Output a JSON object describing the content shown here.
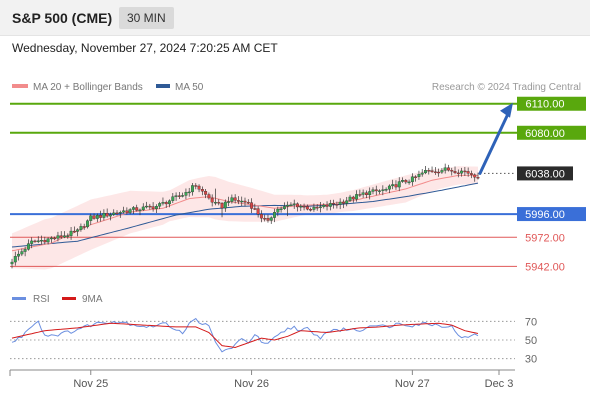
{
  "header": {
    "title": "S&P 500 (CME)",
    "timeframe": "30 MIN",
    "datetime": "Wednesday, November 27, 2024 7:20:25 AM CET"
  },
  "colors": {
    "ma20": "#f28c8c",
    "bollinger_fill": "#fde4e4",
    "ma50": "#2f5a96",
    "green_level": "#59a80d",
    "blue_level": "#3a6fd8",
    "red_level": "#e05858",
    "forecast_arrow": "#2e62b8",
    "current_price_bg": "#2b2b2b",
    "rsi": "#6b8fe0",
    "rsi_9ma": "#d41a1a"
  },
  "chart_data": [
    {
      "type": "candlestick",
      "legend": [
        {
          "name": "MA 20 + Bollinger Bands",
          "color": "#f28c8c"
        },
        {
          "name": "MA 50",
          "color": "#2f5a96"
        }
      ],
      "credit": "Research © 2024 Trading Central",
      "levels": [
        {
          "value": 6110.0,
          "label": "6110.00",
          "kind": "resistance",
          "color": "#59a80d"
        },
        {
          "value": 6080.0,
          "label": "6080.00",
          "kind": "resistance",
          "color": "#59a80d"
        },
        {
          "value": 6038.0,
          "label": "6038.00",
          "kind": "current",
          "color": "#2b2b2b"
        },
        {
          "value": 5996.0,
          "label": "5996.00",
          "kind": "pivot",
          "color": "#3a6fd8"
        },
        {
          "value": 5972.0,
          "label": "5972.00",
          "kind": "support",
          "color": "#e05858"
        },
        {
          "value": 5942.0,
          "label": "5942.00",
          "kind": "support",
          "color": "#e05858"
        }
      ],
      "forecast": {
        "from": 6038,
        "to": 6110
      },
      "ylim": [
        5932,
        6118
      ],
      "close_anchors": [
        [
          0,
          5948
        ],
        [
          6,
          5967
        ],
        [
          14,
          5972
        ],
        [
          20,
          5978
        ],
        [
          24,
          5992
        ],
        [
          34,
          5999
        ],
        [
          44,
          6004
        ],
        [
          52,
          6016
        ],
        [
          56,
          6026
        ],
        [
          58,
          6019
        ],
        [
          62,
          6006
        ],
        [
          64,
          6004
        ],
        [
          66,
          6011
        ],
        [
          72,
          6008
        ],
        [
          76,
          5993
        ],
        [
          78,
          5987
        ],
        [
          80,
          6000
        ],
        [
          86,
          6006
        ],
        [
          92,
          6001
        ],
        [
          100,
          6008
        ],
        [
          108,
          6018
        ],
        [
          114,
          6021
        ],
        [
          118,
          6028
        ],
        [
          122,
          6032
        ],
        [
          126,
          6040
        ],
        [
          132,
          6042
        ],
        [
          138,
          6040
        ],
        [
          142,
          6035
        ]
      ],
      "ma20_anchors": [
        [
          0,
          5958
        ],
        [
          12,
          5966
        ],
        [
          24,
          5985
        ],
        [
          36,
          5998
        ],
        [
          46,
          6002
        ],
        [
          54,
          6012
        ],
        [
          60,
          6014
        ],
        [
          66,
          6009
        ],
        [
          74,
          6005
        ],
        [
          80,
          6002
        ],
        [
          88,
          6005
        ],
        [
          96,
          6006
        ],
        [
          104,
          6010
        ],
        [
          112,
          6016
        ],
        [
          120,
          6022
        ],
        [
          128,
          6031
        ],
        [
          136,
          6036
        ],
        [
          142,
          6036
        ]
      ],
      "ma50_anchors": [
        [
          0,
          5962
        ],
        [
          20,
          5968
        ],
        [
          36,
          5982
        ],
        [
          50,
          5995
        ],
        [
          60,
          6001
        ],
        [
          70,
          6004
        ],
        [
          80,
          6005
        ],
        [
          90,
          6004
        ],
        [
          100,
          6006
        ],
        [
          110,
          6009
        ],
        [
          120,
          6014
        ],
        [
          130,
          6020
        ],
        [
          142,
          6028
        ]
      ],
      "bb_width_anchors": [
        [
          0,
          18
        ],
        [
          10,
          26
        ],
        [
          24,
          26
        ],
        [
          36,
          22
        ],
        [
          48,
          16
        ],
        [
          56,
          20
        ],
        [
          62,
          22
        ],
        [
          72,
          18
        ],
        [
          80,
          14
        ],
        [
          90,
          10
        ],
        [
          100,
          10
        ],
        [
          110,
          12
        ],
        [
          120,
          14
        ],
        [
          132,
          10
        ],
        [
          142,
          9
        ]
      ],
      "x_ticks": [
        {
          "label": "Nov 25",
          "bar": 24
        },
        {
          "label": "Nov 26",
          "bar": 73
        },
        {
          "label": "Nov 27",
          "bar": 122
        },
        {
          "label": "Dec 3",
          "bar": 142
        }
      ]
    },
    {
      "type": "line",
      "legend": [
        {
          "name": "RSI",
          "color": "#6b8fe0"
        },
        {
          "name": "9MA",
          "color": "#d41a1a"
        }
      ],
      "ylim": [
        20,
        80
      ],
      "y_ticks": [
        70,
        50,
        30
      ],
      "rsi_anchors": [
        [
          0,
          47
        ],
        [
          3,
          54
        ],
        [
          6,
          66
        ],
        [
          8,
          70
        ],
        [
          10,
          55
        ],
        [
          14,
          56
        ],
        [
          18,
          59
        ],
        [
          22,
          64
        ],
        [
          26,
          68
        ],
        [
          30,
          70
        ],
        [
          34,
          69
        ],
        [
          38,
          66
        ],
        [
          42,
          64
        ],
        [
          46,
          68
        ],
        [
          50,
          62
        ],
        [
          52,
          58
        ],
        [
          54,
          67
        ],
        [
          56,
          72
        ],
        [
          58,
          68
        ],
        [
          60,
          64
        ],
        [
          62,
          47
        ],
        [
          64,
          38
        ],
        [
          66,
          40
        ],
        [
          68,
          45
        ],
        [
          70,
          50
        ],
        [
          72,
          48
        ],
        [
          74,
          56
        ],
        [
          76,
          48
        ],
        [
          78,
          45
        ],
        [
          80,
          52
        ],
        [
          82,
          57
        ],
        [
          84,
          62
        ],
        [
          86,
          64
        ],
        [
          88,
          60
        ],
        [
          90,
          62
        ],
        [
          92,
          55
        ],
        [
          94,
          53
        ],
        [
          96,
          58
        ],
        [
          98,
          62
        ],
        [
          100,
          60
        ],
        [
          102,
          62
        ],
        [
          106,
          60
        ],
        [
          110,
          67
        ],
        [
          114,
          64
        ],
        [
          118,
          68
        ],
        [
          122,
          66
        ],
        [
          126,
          68
        ],
        [
          130,
          66
        ],
        [
          134,
          64
        ],
        [
          136,
          56
        ],
        [
          138,
          52
        ],
        [
          140,
          54
        ],
        [
          142,
          56
        ]
      ],
      "ma9_anchors": [
        [
          0,
          52
        ],
        [
          10,
          60
        ],
        [
          20,
          63
        ],
        [
          30,
          68
        ],
        [
          40,
          66
        ],
        [
          50,
          64
        ],
        [
          56,
          64
        ],
        [
          60,
          58
        ],
        [
          64,
          44
        ],
        [
          68,
          42
        ],
        [
          72,
          47
        ],
        [
          76,
          52
        ],
        [
          80,
          50
        ],
        [
          84,
          54
        ],
        [
          88,
          60
        ],
        [
          92,
          59
        ],
        [
          96,
          58
        ],
        [
          100,
          60
        ],
        [
          106,
          63
        ],
        [
          112,
          64
        ],
        [
          118,
          66
        ],
        [
          124,
          67
        ],
        [
          130,
          68
        ],
        [
          134,
          66
        ],
        [
          138,
          60
        ],
        [
          142,
          57
        ]
      ]
    }
  ]
}
